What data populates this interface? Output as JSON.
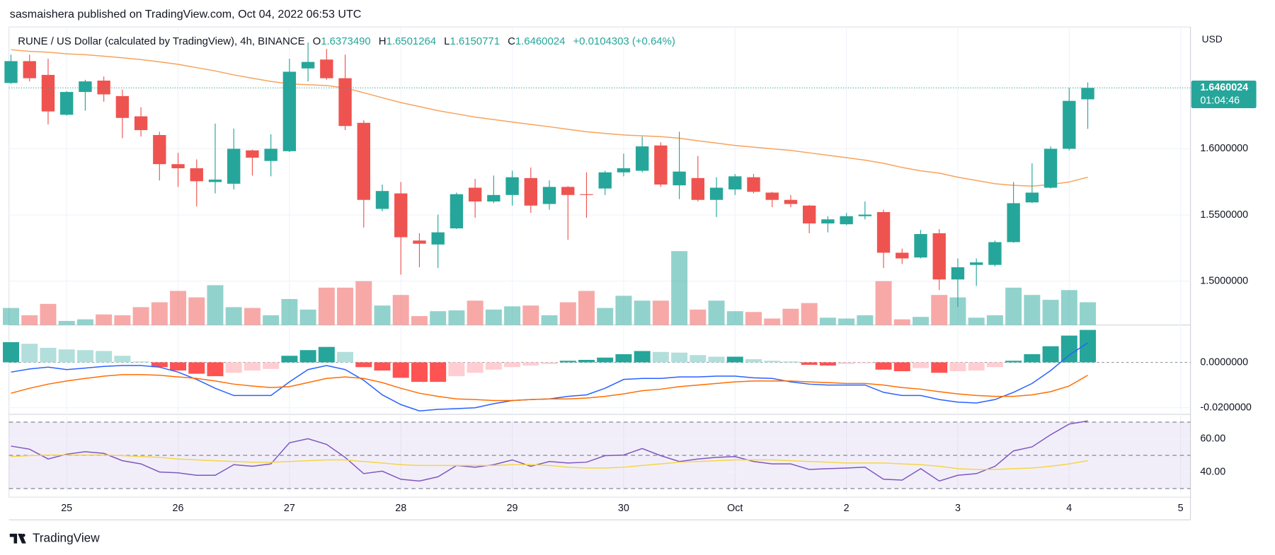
{
  "header": {
    "published": "sasmaishera published on TradingView.com, Oct 04, 2022 06:53 UTC",
    "symbol": "RUNE / US Dollar (calculated by TradingView), 4h, BINANCE",
    "ohlc": [
      {
        "label": "O",
        "value": "1.6373490"
      },
      {
        "label": "H",
        "value": "1.6501264"
      },
      {
        "label": "L",
        "value": "1.6150771"
      },
      {
        "label": "C",
        "value": "1.6460024"
      }
    ],
    "change": "+0.0104303 (+0.64%)"
  },
  "footer": {
    "brand": "TradingView"
  },
  "chart_data": [
    {
      "type": "candlestick",
      "open": [
        1.6497,
        1.6662,
        1.6558,
        1.6257,
        1.6429,
        1.6515,
        1.6398,
        1.6245,
        1.6104,
        1.5884,
        1.5853,
        1.5749,
        1.5736,
        1.5988,
        1.5908,
        1.5982,
        1.6607,
        1.6674,
        1.6533,
        1.6196,
        1.5546,
        1.5663,
        1.5307,
        1.5277,
        1.5399,
        1.5706,
        1.5602,
        1.5651,
        1.5779,
        1.5583,
        1.5712,
        1.5657,
        1.57,
        1.5822,
        1.5834,
        1.6025,
        1.5724,
        1.5779,
        1.5614,
        1.5693,
        1.5785,
        1.5669,
        1.5614,
        1.5571,
        1.5436,
        1.543,
        1.5491,
        1.5522,
        1.5215,
        1.5179,
        1.5362,
        1.5013,
        1.5123,
        1.5123,
        1.5295,
        1.5595,
        1.5706,
        1.6,
        1.637349
      ],
      "high": [
        1.6711,
        1.6711,
        1.668,
        1.6435,
        1.6521,
        1.6546,
        1.6447,
        1.6313,
        1.6129,
        1.5969,
        1.592,
        1.619,
        1.6153,
        1.5994,
        1.611,
        1.668,
        1.6803,
        1.6754,
        1.6711,
        1.6215,
        1.573,
        1.5749,
        1.5362,
        1.5503,
        1.5669,
        1.5773,
        1.5798,
        1.5834,
        1.5859,
        1.5761,
        1.5718,
        1.5822,
        1.5834,
        1.5963,
        1.6092,
        1.6049,
        1.6129,
        1.5945,
        1.5785,
        1.581,
        1.581,
        1.5675,
        1.5651,
        1.5575,
        1.5491,
        1.5516,
        1.5602,
        1.554,
        1.5246,
        1.5387,
        1.5393,
        1.5172,
        1.5172,
        1.5307,
        1.5749,
        1.589,
        1.6018,
        1.646,
        1.6501264
      ],
      "low": [
        1.649,
        1.6509,
        1.6184,
        1.625,
        1.6288,
        1.6356,
        1.608,
        1.6092,
        1.5761,
        1.5712,
        1.5565,
        1.5663,
        1.5693,
        1.5798,
        1.5792,
        1.5975,
        1.6509,
        1.6521,
        1.6141,
        1.5405,
        1.5528,
        1.505,
        1.5105,
        1.5099,
        1.5393,
        1.5479,
        1.5589,
        1.5571,
        1.5516,
        1.554,
        1.5313,
        1.5479,
        1.5651,
        1.5792,
        1.5822,
        1.5712,
        1.562,
        1.5602,
        1.5485,
        1.5651,
        1.5663,
        1.5559,
        1.5559,
        1.5362,
        1.5369,
        1.5424,
        1.5467,
        1.5099,
        1.513,
        1.5172,
        1.4933,
        1.4805,
        1.4964,
        1.5111,
        1.529,
        1.559,
        1.57,
        1.5988,
        1.6150771
      ],
      "close": [
        1.6662,
        1.6533,
        1.6282,
        1.6429,
        1.6509,
        1.6411,
        1.6233,
        1.6141,
        1.5884,
        1.5853,
        1.5755,
        1.5767,
        1.6,
        1.5933,
        1.6,
        1.6582,
        1.6656,
        1.6533,
        1.6172,
        1.5614,
        1.5681,
        1.5332,
        1.5283,
        1.5369,
        1.5657,
        1.5602,
        1.5651,
        1.5785,
        1.5571,
        1.5712,
        1.5651,
        1.5651,
        1.5822,
        1.5853,
        1.6018,
        1.573,
        1.5828,
        1.5614,
        1.5706,
        1.5792,
        1.5675,
        1.5614,
        1.5583,
        1.5436,
        1.5467,
        1.5491,
        1.5503,
        1.5215,
        1.5172,
        1.5356,
        1.5013,
        1.5105,
        1.5142,
        1.5295,
        1.5589,
        1.5669,
        1.6,
        1.6362,
        1.6460024
      ],
      "volume": [
        21,
        12,
        26,
        5,
        7,
        13,
        12,
        22,
        28,
        42,
        34,
        49,
        22,
        21,
        12,
        32,
        19,
        46,
        46,
        54,
        24,
        37,
        11,
        17,
        18,
        30,
        19,
        23,
        24,
        12,
        28,
        42,
        21,
        36,
        30,
        30,
        91,
        19,
        30,
        17,
        16,
        8,
        20,
        27,
        9,
        8,
        12,
        54,
        7,
        10,
        37,
        34,
        9,
        12,
        46,
        37,
        31,
        43,
        28
      ],
      "ma": {
        "color": "#f7a35c",
        "values": [
          1.6748,
          1.6736,
          1.6729,
          1.6717,
          1.6711,
          1.6699,
          1.6687,
          1.6674,
          1.6656,
          1.6638,
          1.6613,
          1.6588,
          1.6558,
          1.6533,
          1.6509,
          1.649,
          1.6484,
          1.6478,
          1.646,
          1.6423,
          1.6386,
          1.6349,
          1.6319,
          1.6288,
          1.6264,
          1.6239,
          1.6221,
          1.6202,
          1.6184,
          1.6166,
          1.6147,
          1.6129,
          1.6116,
          1.6104,
          1.6098,
          1.6092,
          1.608,
          1.6061,
          1.6043,
          1.6025,
          1.6012,
          1.6,
          1.5988,
          1.5969,
          1.5951,
          1.5933,
          1.5914,
          1.589,
          1.5859,
          1.5834,
          1.5816,
          1.5785,
          1.5761,
          1.5736,
          1.5724,
          1.5718,
          1.573,
          1.5749,
          1.5785
        ]
      },
      "up_color": "#26a69a",
      "down_color": "#ef5350",
      "ylim": [
        1.4669,
        1.692
      ],
      "yticks": [
        {
          "value": 1.5,
          "label": "1.5000000"
        },
        {
          "value": 1.55,
          "label": "1.5500000"
        },
        {
          "value": 1.6,
          "label": "1.6000000"
        }
      ],
      "xlim": [
        -0.11,
        63.53
      ],
      "xticks": [
        {
          "value": 3,
          "label": "25"
        },
        {
          "value": 9,
          "label": "26"
        },
        {
          "value": 15,
          "label": "27"
        },
        {
          "value": 21,
          "label": "28"
        },
        {
          "value": 27,
          "label": "29"
        },
        {
          "value": 33,
          "label": "30"
        },
        {
          "value": 39,
          "label": "Oct"
        },
        {
          "value": 45,
          "label": "2"
        },
        {
          "value": 51,
          "label": "3"
        },
        {
          "value": 57,
          "label": "4"
        },
        {
          "value": 63,
          "label": "5"
        }
      ],
      "y_axis_label": "USD",
      "last_price_label": "1.6460024",
      "countdown": "01:04:46",
      "grid": true
    },
    {
      "type": "macd",
      "histogram": [
        0.0089,
        0.0082,
        0.0064,
        0.0057,
        0.0054,
        0.005,
        0.0029,
        0.0004,
        -0.0021,
        -0.0036,
        -0.005,
        -0.0061,
        -0.0046,
        -0.0036,
        -0.0029,
        0.0029,
        0.0054,
        0.0068,
        0.0046,
        -0.0021,
        -0.0036,
        -0.0068,
        -0.0086,
        -0.0086,
        -0.0061,
        -0.0046,
        -0.0032,
        -0.0021,
        -0.0014,
        -0.0007,
        0.0007,
        0.0011,
        0.0021,
        0.0036,
        0.005,
        0.0046,
        0.0043,
        0.0032,
        0.0025,
        0.0025,
        0.0014,
        0.0007,
        0.0004,
        -0.0011,
        -0.0014,
        -0.0007,
        -0.0004,
        -0.0032,
        -0.0039,
        -0.0025,
        -0.0046,
        -0.0039,
        -0.0036,
        -0.0021,
        0.0007,
        0.0036,
        0.0071,
        0.0118,
        0.0143
      ],
      "histogram_colors": [
        "#26a69a",
        "#b2dfdb",
        "#ff5252",
        "#ffcdd2"
      ],
      "macd": {
        "color": "#2962ff",
        "values": [
          -0.0043,
          -0.0029,
          -0.0021,
          -0.0032,
          -0.0025,
          -0.0018,
          -0.0014,
          -0.0014,
          -0.0021,
          -0.0043,
          -0.0075,
          -0.0114,
          -0.0146,
          -0.0146,
          -0.0146,
          -0.0086,
          -0.0032,
          -0.0014,
          -0.0032,
          -0.0079,
          -0.0143,
          -0.0186,
          -0.0214,
          -0.0207,
          -0.0204,
          -0.02,
          -0.0182,
          -0.0168,
          -0.0164,
          -0.0161,
          -0.015,
          -0.0143,
          -0.0114,
          -0.0075,
          -0.0071,
          -0.0071,
          -0.0064,
          -0.0064,
          -0.0061,
          -0.0061,
          -0.0068,
          -0.0071,
          -0.0086,
          -0.0096,
          -0.01,
          -0.01,
          -0.01,
          -0.0132,
          -0.0146,
          -0.0146,
          -0.0164,
          -0.0175,
          -0.0179,
          -0.0164,
          -0.0132,
          -0.0093,
          -0.0036,
          0.0032,
          0.0086
        ]
      },
      "signal": {
        "color": "#ff6d00",
        "values": [
          -0.0136,
          -0.0114,
          -0.0096,
          -0.0082,
          -0.0071,
          -0.0061,
          -0.0054,
          -0.0054,
          -0.0057,
          -0.0064,
          -0.0071,
          -0.0082,
          -0.0096,
          -0.0104,
          -0.0111,
          -0.0107,
          -0.0089,
          -0.0071,
          -0.0064,
          -0.0071,
          -0.0089,
          -0.0114,
          -0.0136,
          -0.015,
          -0.0161,
          -0.0164,
          -0.0168,
          -0.0168,
          -0.0164,
          -0.0161,
          -0.0161,
          -0.0157,
          -0.015,
          -0.0139,
          -0.0125,
          -0.0118,
          -0.0107,
          -0.01,
          -0.0093,
          -0.0086,
          -0.0082,
          -0.0082,
          -0.0082,
          -0.0086,
          -0.0089,
          -0.0093,
          -0.0093,
          -0.01,
          -0.0111,
          -0.0118,
          -0.0129,
          -0.0139,
          -0.0146,
          -0.015,
          -0.015,
          -0.0143,
          -0.0129,
          -0.0104,
          -0.0057
        ]
      },
      "ylim": [
        -0.0229,
        0.0161
      ],
      "yticks": [
        {
          "value": 0,
          "label": "0.0000000"
        },
        {
          "value": -0.02,
          "label": "-0.0200000"
        }
      ]
    },
    {
      "type": "line",
      "series": [
        {
          "color": "#7e57c2",
          "values": [
            55.6,
            53.7,
            47.8,
            50.7,
            52.2,
            51.2,
            46.8,
            44.9,
            40.0,
            39.5,
            38.0,
            38.0,
            44.4,
            43.4,
            44.9,
            57.6,
            60.0,
            56.6,
            48.8,
            39.0,
            40.5,
            35.6,
            34.6,
            37.1,
            43.9,
            42.9,
            44.4,
            47.3,
            43.4,
            46.3,
            45.4,
            45.9,
            49.8,
            50.2,
            54.1,
            49.8,
            46.3,
            47.8,
            48.8,
            49.3,
            46.3,
            44.9,
            44.9,
            41.5,
            42.0,
            42.4,
            42.9,
            35.6,
            35.1,
            42.0,
            34.6,
            38.0,
            39.0,
            43.4,
            52.7,
            55.1,
            62.4,
            68.8,
            70.7
          ]
        },
        {
          "color": "#f5d547",
          "values": [
            49.3,
            49.8,
            50.2,
            50.2,
            50.2,
            50.2,
            49.8,
            49.3,
            48.8,
            47.8,
            47.3,
            46.8,
            46.3,
            45.9,
            45.9,
            46.3,
            46.8,
            47.3,
            47.3,
            46.3,
            45.4,
            44.4,
            43.9,
            43.9,
            43.9,
            43.9,
            43.9,
            44.4,
            44.4,
            43.9,
            42.9,
            42.4,
            42.4,
            42.9,
            43.9,
            44.9,
            45.9,
            46.3,
            46.8,
            47.3,
            47.3,
            47.3,
            46.8,
            46.3,
            45.9,
            45.4,
            45.4,
            45.4,
            44.9,
            44.4,
            43.4,
            42.0,
            41.5,
            41.5,
            42.0,
            42.4,
            43.4,
            44.9,
            46.8
          ]
        }
      ],
      "bands": [
        70,
        50,
        30
      ],
      "band_color": "#7e57c2",
      "ylim": [
        27.3,
        73.7
      ],
      "yticks": [
        {
          "value": 60,
          "label": "60.00"
        },
        {
          "value": 40,
          "label": "40.00"
        }
      ]
    }
  ]
}
